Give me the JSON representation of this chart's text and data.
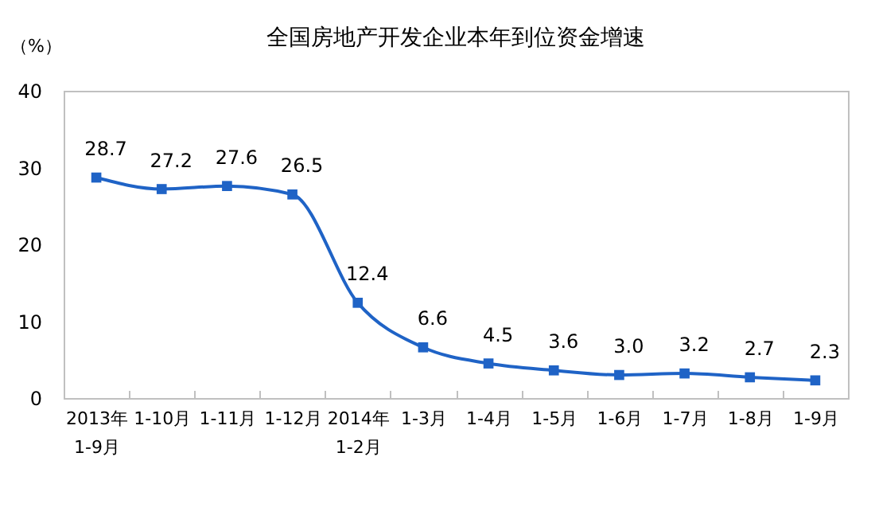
{
  "chart_data": {
    "type": "line",
    "title": "全国房地产开发企业本年到位资金增速",
    "ylabel": "（%）",
    "categories": [
      "2013年\n1-9月",
      "1-10月",
      "1-11月",
      "1-12月",
      "2014年\n1-2月",
      "1-3月",
      "1-4月",
      "1-5月",
      "1-6月",
      "1-7月",
      "1-8月",
      "1-9月"
    ],
    "values": [
      28.7,
      27.2,
      27.6,
      26.5,
      12.4,
      6.6,
      4.5,
      3.6,
      3.0,
      3.2,
      2.7,
      2.3
    ],
    "value_labels": [
      "28.7",
      "27.2",
      "27.6",
      "26.5",
      "12.4",
      "6.6",
      "4.5",
      "3.6",
      "3.0",
      "3.2",
      "2.7",
      "2.3"
    ],
    "color": "#1f63c6",
    "ylim": [
      0,
      40
    ],
    "yticks": [
      0,
      10,
      20,
      30,
      40
    ],
    "grid": false,
    "marker": "square"
  }
}
